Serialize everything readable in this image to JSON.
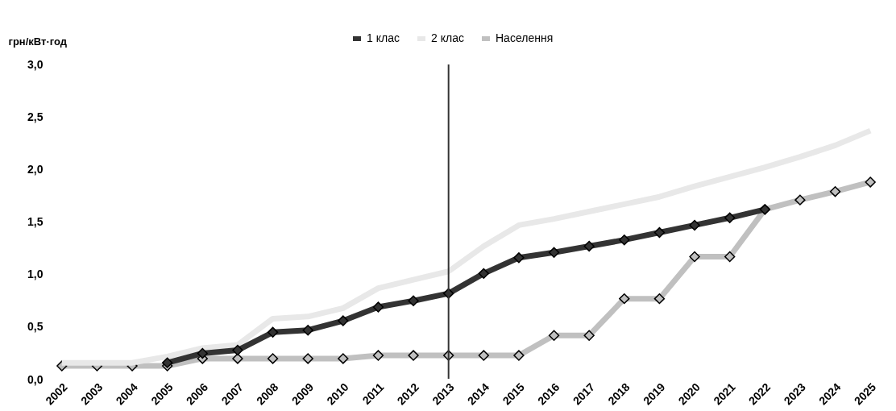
{
  "chart_data": {
    "type": "line",
    "ylabel": "грн/кВт·год",
    "categories": [
      "2002",
      "2003",
      "2004",
      "2005",
      "2006",
      "2007",
      "2008",
      "2009",
      "2010",
      "2011",
      "2012",
      "2013",
      "2014",
      "2015",
      "2016",
      "2017",
      "2018",
      "2019",
      "2020",
      "2021",
      "2022",
      "2023",
      "2024",
      "2025"
    ],
    "series": [
      {
        "name": "1 клас",
        "color": "#333333",
        "marker": "diamond",
        "values": [
          null,
          null,
          null,
          0.16,
          0.25,
          0.28,
          0.45,
          0.47,
          0.56,
          0.69,
          0.75,
          0.82,
          1.01,
          1.16,
          1.21,
          1.27,
          1.33,
          1.4,
          1.47,
          1.54,
          1.62,
          null,
          null,
          null
        ]
      },
      {
        "name": "2 клас",
        "color": "#e8e8e8",
        "marker": "none",
        "values": [
          0.16,
          0.16,
          0.16,
          0.22,
          0.3,
          0.33,
          0.58,
          0.6,
          0.68,
          0.87,
          0.95,
          1.03,
          1.27,
          1.47,
          1.53,
          1.6,
          1.67,
          1.74,
          1.84,
          1.93,
          2.02,
          2.12,
          2.23,
          2.37
        ]
      },
      {
        "name": "Населення",
        "color": "#c0c0c0",
        "marker": "diamond",
        "values": [
          0.13,
          0.13,
          0.13,
          0.13,
          0.2,
          0.2,
          0.2,
          0.2,
          0.2,
          0.23,
          0.23,
          0.23,
          0.23,
          0.23,
          0.42,
          0.42,
          0.77,
          0.77,
          1.17,
          1.17,
          1.62,
          1.71,
          1.79,
          1.88
        ]
      }
    ],
    "ylim": [
      0,
      3
    ],
    "yticks": [
      {
        "value": 0,
        "label": "0,0"
      },
      {
        "value": 0.5,
        "label": "0,5"
      },
      {
        "value": 1,
        "label": "1,0"
      },
      {
        "value": 1.5,
        "label": "1,5"
      },
      {
        "value": 2,
        "label": "2,0"
      },
      {
        "value": 2.5,
        "label": "2,5"
      },
      {
        "value": 3,
        "label": "3,0"
      }
    ],
    "ref_lines": [
      {
        "axis": "x",
        "value": "2013",
        "color": "#333333"
      }
    ],
    "grid": false,
    "legend": "top"
  }
}
